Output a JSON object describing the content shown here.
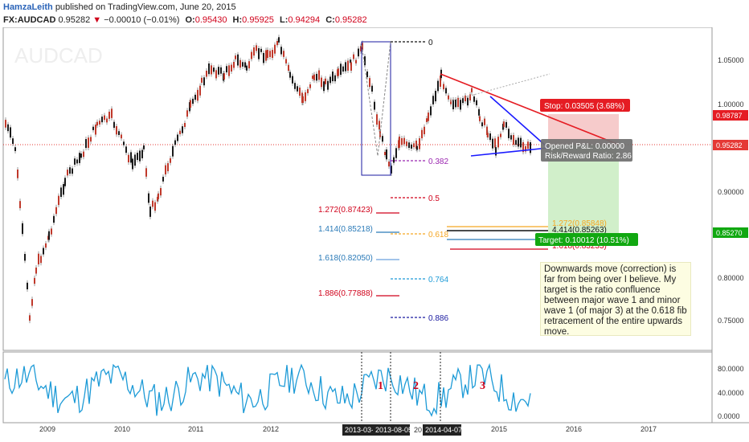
{
  "header": {
    "author": "HamzaLeith",
    "published": "published on TradingView.com, June 20, 2015",
    "symbol": "FX:AUDCAD",
    "price": "0.95282",
    "change": "−0.00010 (−0.01%)",
    "open_label": "O:",
    "open": "0.95430",
    "high_label": "H:",
    "high": "0.95925",
    "low_label": "L:",
    "low": "0.94294",
    "close_label": "C:",
    "close": "0.95282"
  },
  "watermark": "AUDCAD",
  "price_axis": {
    "ticks": [
      "1.05000",
      "1.00000",
      "0.90000",
      "0.80000",
      "0.75000"
    ],
    "labels": {
      "stop": "0.98787",
      "current": "0.95282",
      "target": "0.85270"
    }
  },
  "oscillator_axis": {
    "ticks": [
      "80.0000",
      "40.0000",
      "0.0000"
    ]
  },
  "time_axis": {
    "years": [
      "2009",
      "2010",
      "2011",
      "2012",
      "2015",
      "2016",
      "2017"
    ],
    "cursor_dates": [
      "2013-03-",
      "2013-08-05",
      "20",
      "2014-04-07"
    ]
  },
  "fib_retracement": [
    {
      "label": "0",
      "color": "#111111"
    },
    {
      "label": "0.382",
      "color": "#9b27b0"
    },
    {
      "label": "0.5",
      "color": "#d0021b"
    },
    {
      "label": "0.618",
      "color": "#f5a623"
    },
    {
      "label": "0.764",
      "color": "#1e9bd7"
    },
    {
      "label": "0.886",
      "color": "#1a1aa0"
    }
  ],
  "fib_extension": [
    {
      "label": "1.272(0.87423)",
      "color": "#d0021b"
    },
    {
      "label": "1.414(0.85218)",
      "color": "#2a7ab8"
    },
    {
      "label": "1.618(0.82050)",
      "color": "#2a7ab8"
    },
    {
      "label": "1.886(0.77888)",
      "color": "#d0021b"
    }
  ],
  "minor_fib": [
    {
      "label": "1.272(0.85848)",
      "color": "#f5a623"
    },
    {
      "label": "4.414(0.85263)",
      "color": "#111111"
    },
    {
      "label": "1.618(0.83233)",
      "color": "#d0021b"
    }
  ],
  "position": {
    "stop": "Stop: 0.03505 (3.68%)",
    "pnl": "Opened P&L: 0.00000",
    "rr": "Risk/Reward Ratio: 2.86",
    "target": "Target: 0.10012 (10.51%)"
  },
  "wave_labels": [
    "1",
    "2",
    "3"
  ],
  "note": "Downwards move (correction) is far from being over I believe. My target is the ratio confluence between major wave 1 and minor wave 1 (of major 3) at the 0.618 fib retracement of the entire upwards move.",
  "colors": {
    "up_candle": "#1a1a1a",
    "down_candle": "#c0392b",
    "oscillator": "#1e9bd7",
    "stop_zone": "#f4c2c2",
    "target_zone": "#c9ecc1",
    "stop_badge": "#e51c23",
    "target_badge": "#11a811",
    "current_price": "#e53935"
  }
}
